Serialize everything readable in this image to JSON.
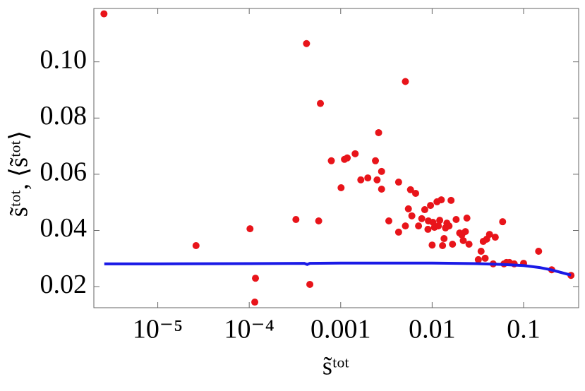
{
  "chart_data": {
    "type": "scatter-line",
    "x_label": "s̃ᵗᵒᵗ",
    "y_label": "s̃ᵗᵒᵗ, ⟨s̃ᵗᵒᵗ⟩",
    "x_log": true,
    "xlim": [
      2e-06,
      0.4
    ],
    "ylim": [
      0.0125,
      0.119
    ],
    "xticks": [
      {
        "value": 1e-05,
        "label": "10⁻⁵"
      },
      {
        "value": 0.0001,
        "label": "10⁻⁴"
      },
      0.001,
      0.01,
      0.1
    ],
    "yticks": [
      0.02,
      0.04,
      0.06,
      0.08,
      {
        "value": 0.1,
        "label": "0.10"
      }
    ],
    "series": [
      {
        "kind": "points",
        "color": "#e8141a",
        "x": [
          2.58e-06,
          2.62e-05,
          0.000102,
          0.000117,
          0.000115,
          0.000324,
          0.000423,
          0.00046,
          0.000575,
          0.0006,
          0.00079,
          0.00101,
          0.0011,
          0.00118,
          0.00144,
          0.00166,
          0.00198,
          0.0024,
          0.0025,
          0.0026,
          0.0028,
          0.0028,
          0.00336,
          0.0043,
          0.0043,
          0.0051,
          0.0051,
          0.0055,
          0.0058,
          0.006,
          0.0066,
          0.0071,
          0.0077,
          0.0083,
          0.0091,
          0.009,
          0.0096,
          0.01,
          0.0102,
          0.0106,
          0.0113,
          0.0117,
          0.0121,
          0.0126,
          0.013,
          0.0135,
          0.014,
          0.0145,
          0.0153,
          0.0161,
          0.0167,
          0.0183,
          0.02,
          0.0211,
          0.0219,
          0.0231,
          0.024,
          0.0253,
          0.032,
          0.0343,
          0.0362,
          0.038,
          0.0395,
          0.0424,
          0.0465,
          0.049,
          0.059,
          0.061,
          0.065,
          0.07,
          0.079,
          0.1,
          0.146,
          0.203,
          0.33
        ],
        "values": [
          0.1171,
          0.0346,
          0.0406,
          0.023,
          0.0145,
          0.0439,
          0.1065,
          0.0208,
          0.0434,
          0.0852,
          0.0648,
          0.0552,
          0.0653,
          0.0658,
          0.0673,
          0.058,
          0.0587,
          0.0648,
          0.058,
          0.0748,
          0.061,
          0.0547,
          0.0434,
          0.0572,
          0.0394,
          0.093,
          0.0416,
          0.0477,
          0.0545,
          0.0452,
          0.0532,
          0.0416,
          0.0442,
          0.0474,
          0.0434,
          0.0404,
          0.0489,
          0.0348,
          0.0429,
          0.0411,
          0.0502,
          0.0416,
          0.0436,
          0.0509,
          0.0346,
          0.0371,
          0.0409,
          0.0426,
          0.0416,
          0.0507,
          0.0351,
          0.0439,
          0.0391,
          0.0384,
          0.0364,
          0.0396,
          0.0444,
          0.0351,
          0.0296,
          0.0326,
          0.0361,
          0.0301,
          0.0369,
          0.0386,
          0.0281,
          0.0376,
          0.0431,
          0.0281,
          0.0286,
          0.0286,
          0.0281,
          0.0283,
          0.0326,
          0.026,
          0.024
        ]
      },
      {
        "kind": "line",
        "color": "#1a1ae6",
        "x": [
          2.6e-06,
          1e-05,
          0.0001,
          0.0004,
          0.00043,
          0.00046,
          0.001,
          0.01,
          0.03,
          0.06,
          0.1,
          0.15,
          0.2,
          0.33
        ],
        "values": [
          0.0281,
          0.0281,
          0.0282,
          0.0283,
          0.0279,
          0.0283,
          0.0284,
          0.0284,
          0.0282,
          0.0279,
          0.0275,
          0.0268,
          0.026,
          0.0241
        ]
      }
    ]
  }
}
